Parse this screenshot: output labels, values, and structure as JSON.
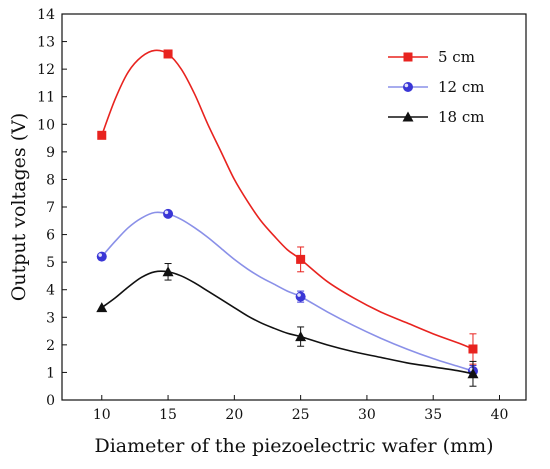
{
  "chart_data": {
    "type": "line",
    "xlabel": "Diameter of the piezoelectric wafer (mm)",
    "ylabel": "Output voltages (V)",
    "xlim": [
      7,
      42
    ],
    "ylim": [
      0,
      14
    ],
    "xticks": [
      10,
      15,
      20,
      25,
      30,
      35,
      40
    ],
    "yticks": [
      0,
      1,
      2,
      3,
      4,
      5,
      6,
      7,
      8,
      9,
      10,
      11,
      12,
      13,
      14
    ],
    "legend_position": "top-right",
    "grid": false,
    "series": [
      {
        "name": "5 cm",
        "color": "#e8231f",
        "marker": "square",
        "x": [
          10,
          15,
          25,
          38
        ],
        "y": [
          9.6,
          12.55,
          5.1,
          1.85
        ],
        "error": [
          0,
          0.1,
          0.45,
          0.55
        ],
        "curve": [
          [
            10,
            9.6
          ],
          [
            11,
            10.9
          ],
          [
            12,
            11.9
          ],
          [
            13,
            12.45
          ],
          [
            14,
            12.68
          ],
          [
            15,
            12.55
          ],
          [
            16,
            12.0
          ],
          [
            17,
            11.1
          ],
          [
            18,
            10.0
          ],
          [
            19,
            9.0
          ],
          [
            20,
            8.0
          ],
          [
            21,
            7.2
          ],
          [
            22,
            6.5
          ],
          [
            23,
            5.95
          ],
          [
            24,
            5.45
          ],
          [
            25,
            5.1
          ],
          [
            27,
            4.3
          ],
          [
            29,
            3.7
          ],
          [
            31,
            3.2
          ],
          [
            33,
            2.8
          ],
          [
            35,
            2.4
          ],
          [
            37,
            2.05
          ],
          [
            38,
            1.85
          ]
        ]
      },
      {
        "name": "12 cm",
        "color": "#3a36d6",
        "line_color": "#8a90e8",
        "marker": "circle",
        "x": [
          10,
          15,
          25,
          38
        ],
        "y": [
          5.2,
          6.75,
          3.75,
          1.05
        ],
        "error": [
          0,
          0,
          0.2,
          0.2
        ],
        "curve": [
          [
            10,
            5.2
          ],
          [
            11,
            5.75
          ],
          [
            12,
            6.25
          ],
          [
            13,
            6.6
          ],
          [
            14,
            6.8
          ],
          [
            15,
            6.75
          ],
          [
            16,
            6.55
          ],
          [
            17,
            6.25
          ],
          [
            18,
            5.9
          ],
          [
            19,
            5.5
          ],
          [
            20,
            5.1
          ],
          [
            21,
            4.75
          ],
          [
            22,
            4.45
          ],
          [
            23,
            4.2
          ],
          [
            24,
            3.95
          ],
          [
            25,
            3.75
          ],
          [
            27,
            3.2
          ],
          [
            29,
            2.7
          ],
          [
            31,
            2.25
          ],
          [
            33,
            1.85
          ],
          [
            35,
            1.5
          ],
          [
            37,
            1.2
          ],
          [
            38,
            1.05
          ]
        ]
      },
      {
        "name": "18 cm",
        "color": "#111111",
        "marker": "triangle",
        "x": [
          10,
          15,
          25,
          38
        ],
        "y": [
          3.35,
          4.65,
          2.3,
          0.95
        ],
        "error": [
          0,
          0.3,
          0.35,
          0.45
        ],
        "curve": [
          [
            10,
            3.35
          ],
          [
            11,
            3.7
          ],
          [
            12,
            4.1
          ],
          [
            13,
            4.45
          ],
          [
            14,
            4.65
          ],
          [
            15,
            4.65
          ],
          [
            16,
            4.5
          ],
          [
            17,
            4.25
          ],
          [
            18,
            3.95
          ],
          [
            19,
            3.65
          ],
          [
            20,
            3.35
          ],
          [
            21,
            3.05
          ],
          [
            22,
            2.8
          ],
          [
            23,
            2.6
          ],
          [
            24,
            2.42
          ],
          [
            25,
            2.3
          ],
          [
            27,
            2.0
          ],
          [
            29,
            1.75
          ],
          [
            31,
            1.55
          ],
          [
            33,
            1.35
          ],
          [
            35,
            1.2
          ],
          [
            37,
            1.05
          ],
          [
            38,
            0.95
          ]
        ]
      }
    ]
  }
}
